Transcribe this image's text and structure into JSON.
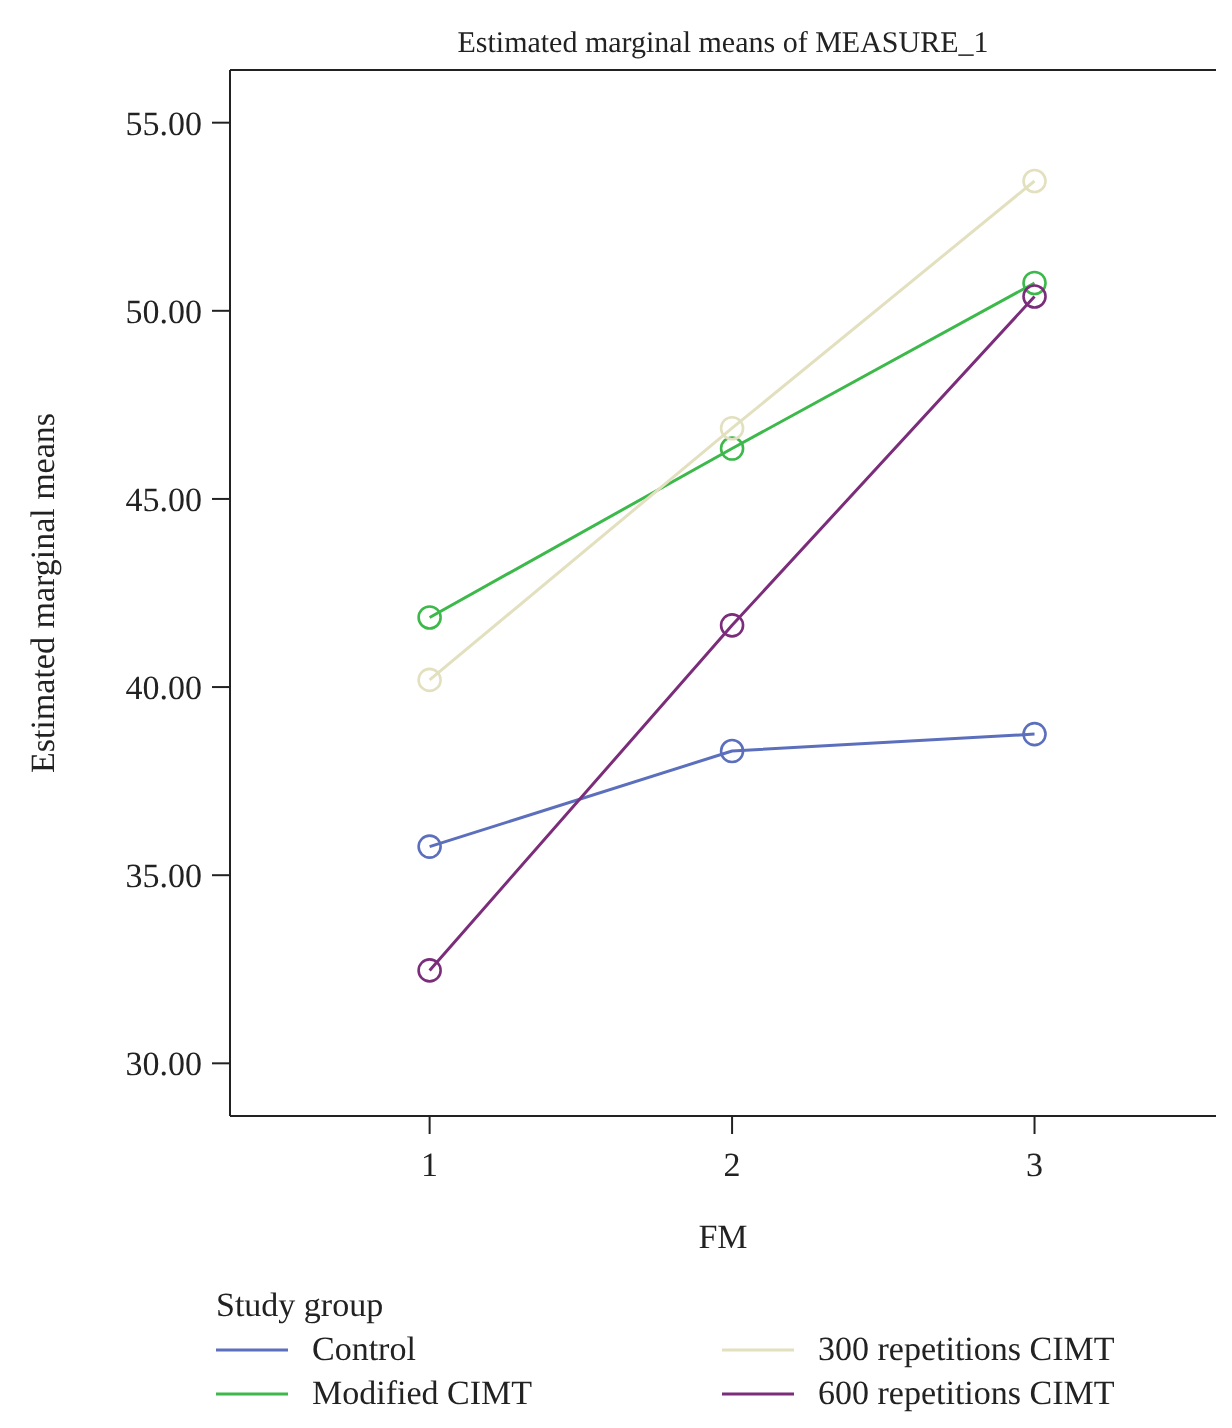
{
  "chart_data": {
    "type": "line",
    "title": "Estimated marginal means of MEASURE_1",
    "xlabel": "FM",
    "ylabel": "Estimated marginal means",
    "legend_title": "Study group",
    "legend": "bottom",
    "marker": "circle",
    "grid": false,
    "x": [
      1,
      2,
      3
    ],
    "xlim": [
      0.34,
      3.6
    ],
    "xticks": [
      1,
      2,
      3
    ],
    "ylim": [
      28.6,
      56.4
    ],
    "yticks": [
      {
        "value": 30,
        "label": "30.00"
      },
      {
        "value": 35,
        "label": "35.00"
      },
      {
        "value": 40,
        "label": "40.00"
      },
      {
        "value": 45,
        "label": "45.00"
      },
      {
        "value": 50,
        "label": "50.00"
      },
      {
        "value": 55,
        "label": "55.00"
      }
    ],
    "series": [
      {
        "name": "Control",
        "color": "#5b6fbd",
        "values": [
          35.76,
          38.3,
          38.75
        ]
      },
      {
        "name": "Modified CIMT",
        "color": "#3cb94a",
        "values": [
          41.85,
          46.34,
          50.74
        ]
      },
      {
        "name": "300 repetitions CIMT",
        "color": "#e3e0bf",
        "values": [
          40.19,
          46.88,
          53.45
        ]
      },
      {
        "name": "600 repetitions CIMT",
        "color": "#7b2d7b",
        "values": [
          32.47,
          41.64,
          50.38
        ]
      }
    ]
  }
}
